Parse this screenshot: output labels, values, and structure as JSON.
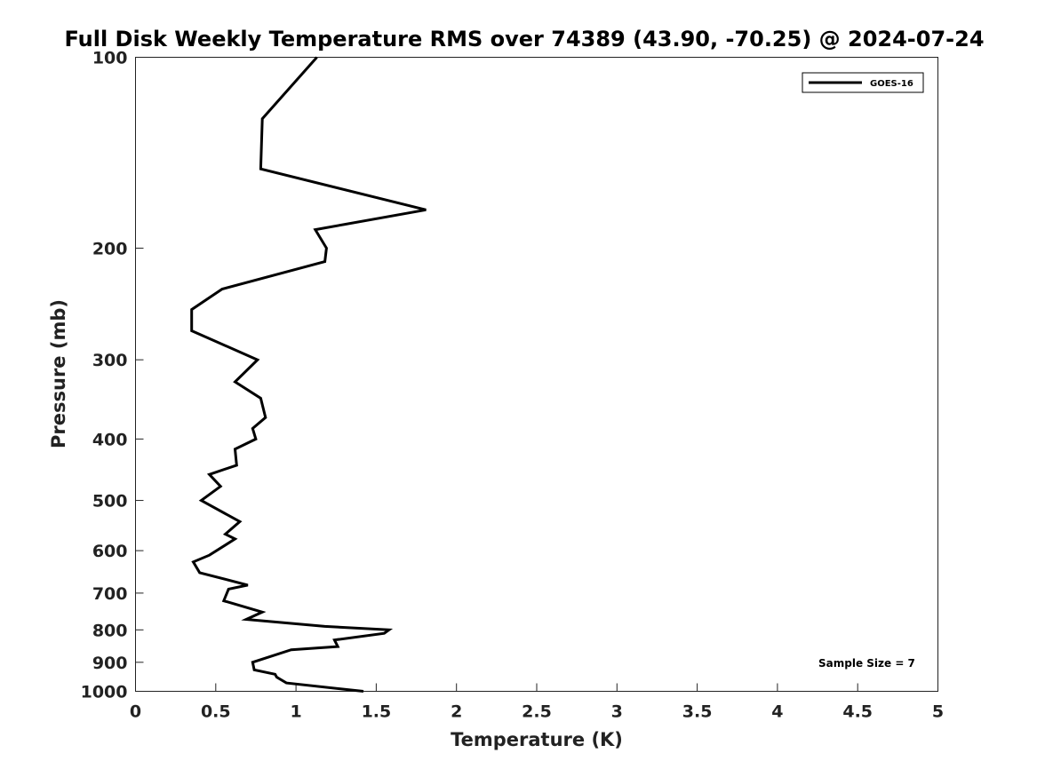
{
  "chart_data": {
    "type": "line",
    "title": "Full Disk Weekly Temperature RMS over 74389 (43.90, -70.25) @ 2024-07-24",
    "xlabel": "Temperature (K)",
    "ylabel": "Pressure (mb)",
    "xlim": [
      0,
      5
    ],
    "ylim": [
      100,
      1000
    ],
    "y_scale": "log",
    "y_inverted": true,
    "grid": false,
    "legend_position": "top-right",
    "x_ticks": [
      "0",
      "0.5",
      "1",
      "1.5",
      "2",
      "2.5",
      "3",
      "3.5",
      "4",
      "4.5",
      "5"
    ],
    "y_ticks": [
      "100",
      "200",
      "300",
      "400",
      "500",
      "600",
      "700",
      "800",
      "900",
      "1000"
    ],
    "series": [
      {
        "name": "GOES-16",
        "color": "#000000",
        "x": [
          1.13,
          0.79,
          0.78,
          1.81,
          1.12,
          1.19,
          1.18,
          0.54,
          0.35,
          0.35,
          0.76,
          0.62,
          0.78,
          0.81,
          0.73,
          0.75,
          0.62,
          0.63,
          0.46,
          0.53,
          0.41,
          0.65,
          0.56,
          0.62,
          0.46,
          0.36,
          0.4,
          0.7,
          0.58,
          0.55,
          0.79,
          0.69,
          1.18,
          1.58,
          1.55,
          1.24,
          1.26,
          0.97,
          0.73,
          0.74,
          0.87,
          0.88,
          0.94,
          1.42
        ],
        "y": [
          100,
          125,
          150,
          174,
          187,
          200,
          210,
          232,
          250,
          270,
          300,
          325,
          345,
          370,
          385,
          400,
          415,
          440,
          455,
          475,
          500,
          540,
          565,
          575,
          610,
          625,
          650,
          680,
          690,
          720,
          750,
          770,
          790,
          800,
          810,
          830,
          850,
          860,
          900,
          925,
          940,
          950,
          970,
          1000
        ]
      }
    ],
    "legend": [
      "GOES-16"
    ],
    "annotation": "Sample Size = 7"
  }
}
